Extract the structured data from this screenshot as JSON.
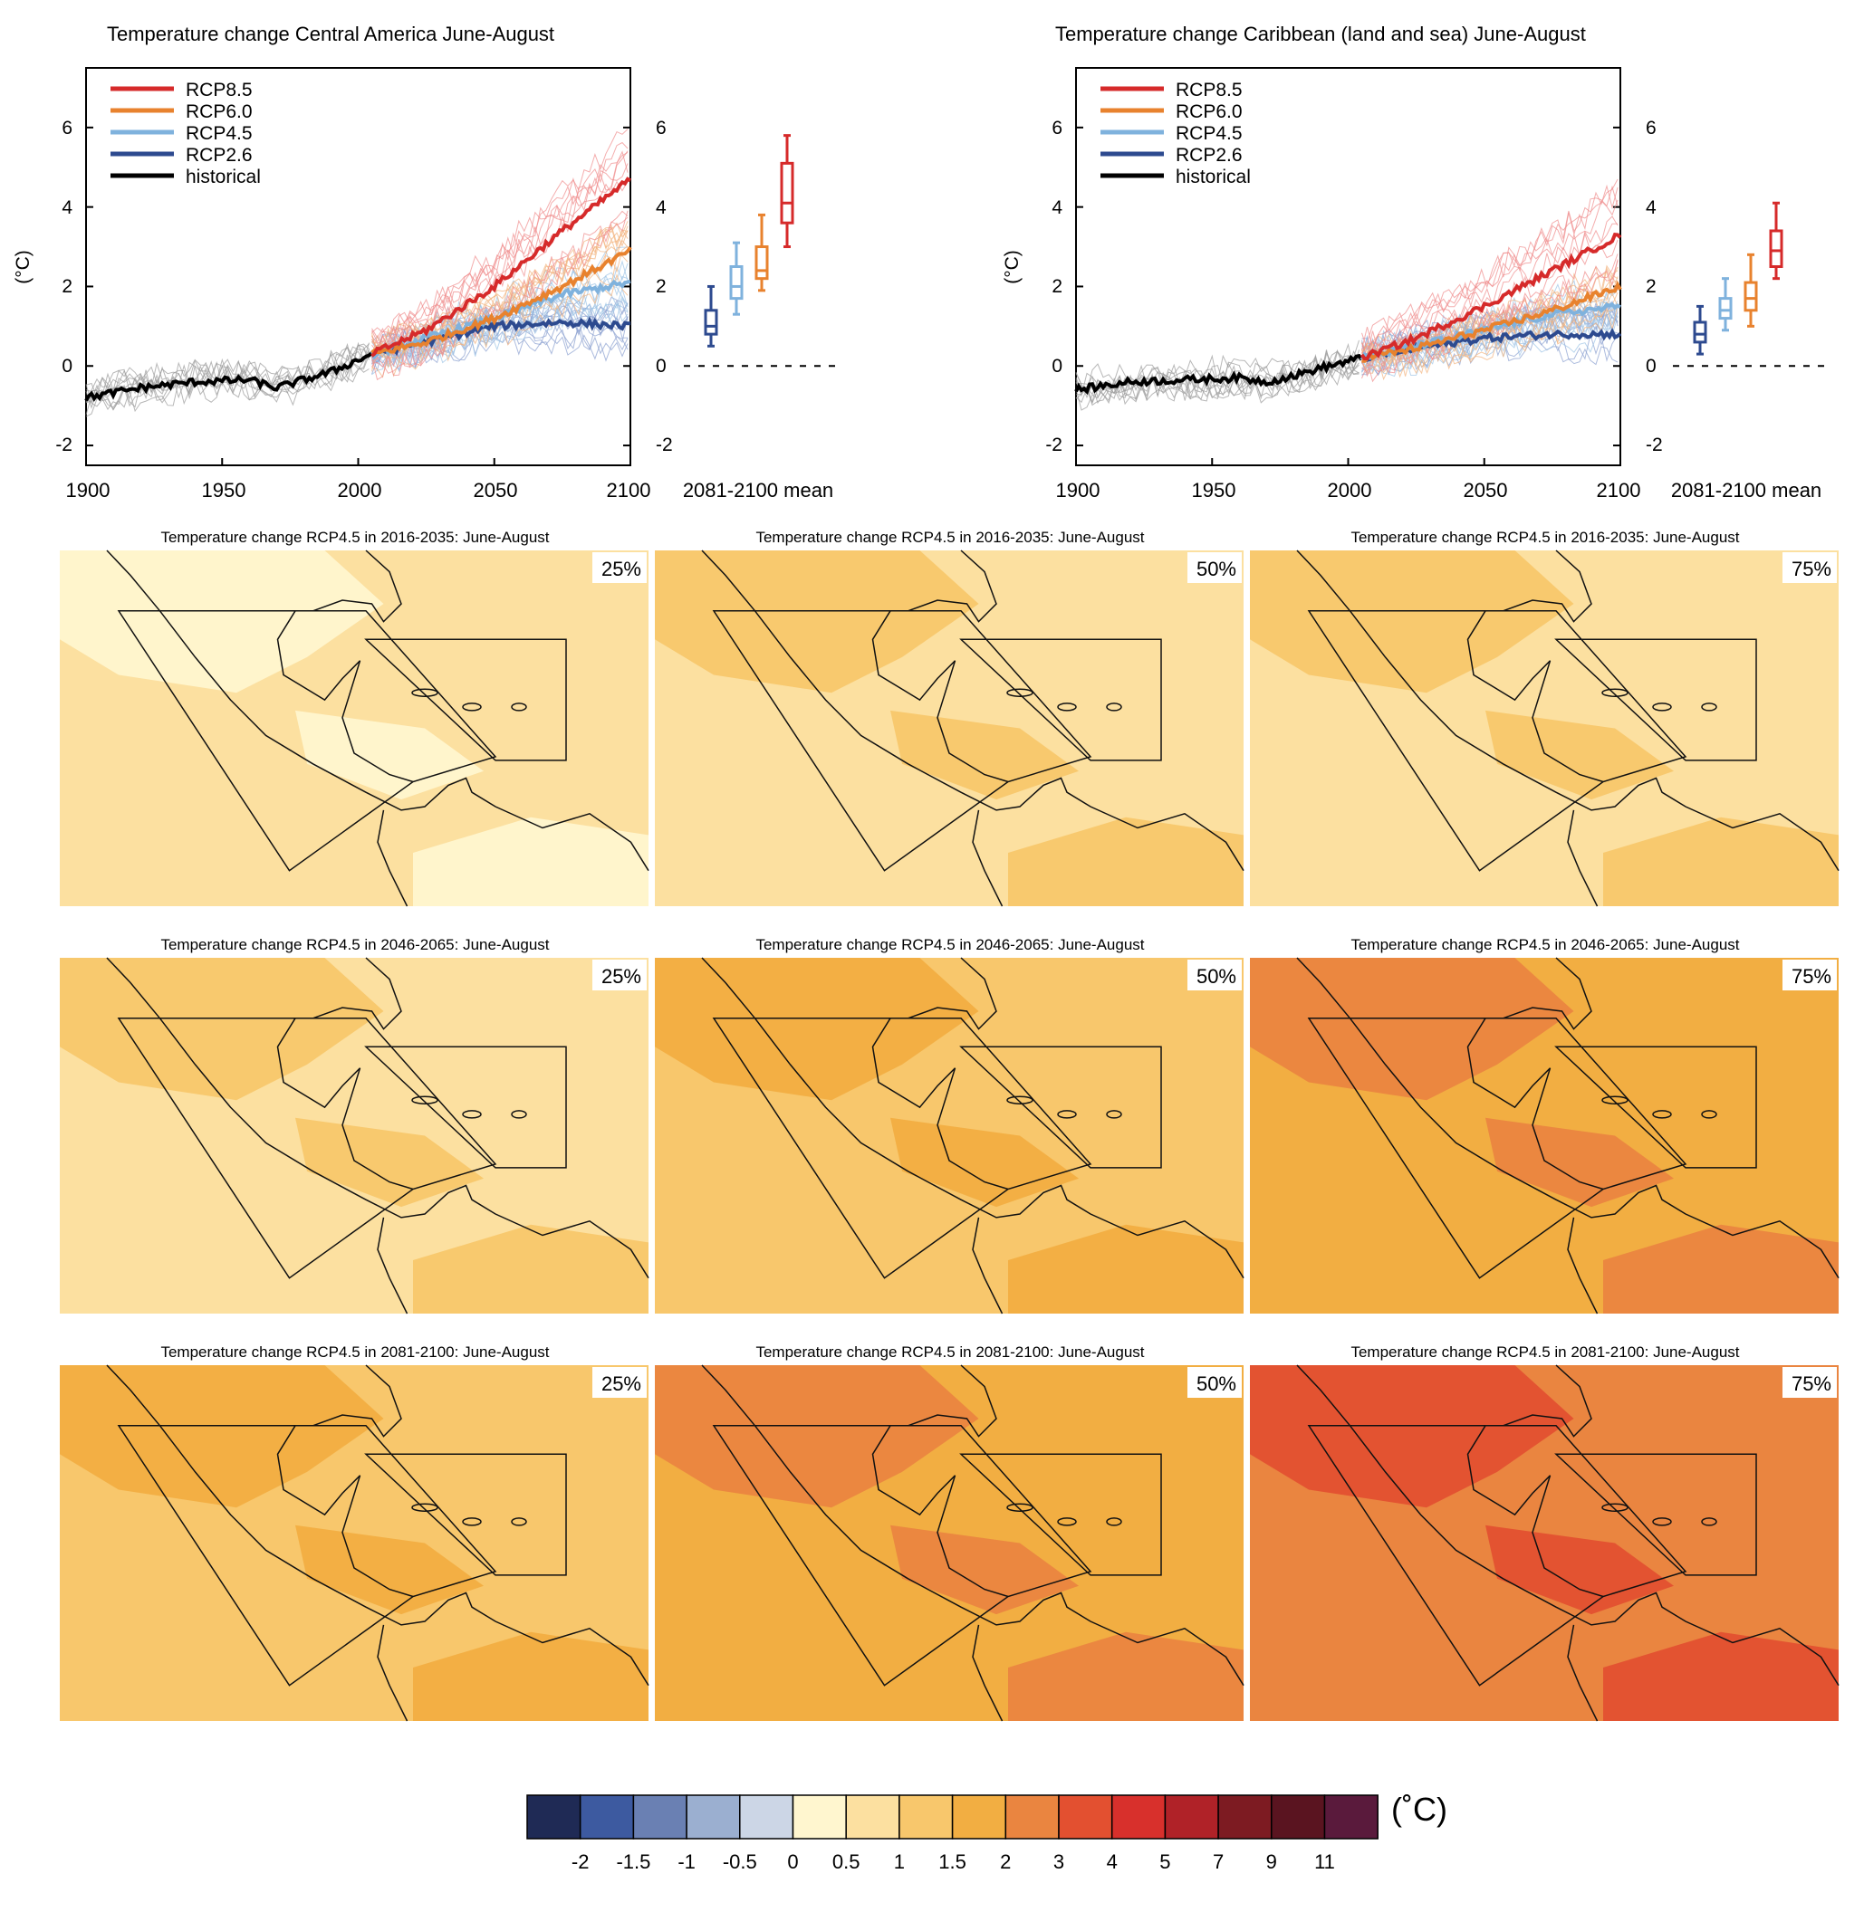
{
  "top_panels": [
    {
      "title": "Temperature change Central America June-August",
      "ylabel": "(°C)",
      "x_ticks": [
        "1900",
        "1950",
        "2000",
        "2050",
        "2100"
      ],
      "y_ticks": [
        "-2",
        "0",
        "2",
        "4",
        "6"
      ],
      "box_label": "2081-2100 mean"
    },
    {
      "title": "Temperature change Caribbean (land and sea) June-August",
      "ylabel": "(°C)",
      "x_ticks": [
        "1900",
        "1950",
        "2000",
        "2050",
        "2100"
      ],
      "y_ticks": [
        "-2",
        "0",
        "2",
        "4",
        "6"
      ],
      "box_label": "2081-2100 mean"
    }
  ],
  "legend": [
    {
      "label": "RCP8.5",
      "color": "#d62a2a"
    },
    {
      "label": "RCP6.0",
      "color": "#e8822e"
    },
    {
      "label": "RCP4.5",
      "color": "#7fb2dd"
    },
    {
      "label": "RCP2.6",
      "color": "#2d4a8f"
    },
    {
      "label": "historical",
      "color": "#000000"
    }
  ],
  "maps": [
    {
      "title": "Temperature change RCP4.5 in 2016-2035: June-August",
      "pct": "25%"
    },
    {
      "title": "Temperature change RCP4.5 in 2016-2035: June-August",
      "pct": "50%"
    },
    {
      "title": "Temperature change RCP4.5 in 2016-2035: June-August",
      "pct": "75%"
    },
    {
      "title": "Temperature change RCP4.5 in 2046-2065: June-August",
      "pct": "25%"
    },
    {
      "title": "Temperature change RCP4.5 in 2046-2065: June-August",
      "pct": "50%"
    },
    {
      "title": "Temperature change RCP4.5 in 2046-2065: June-August",
      "pct": "75%"
    },
    {
      "title": "Temperature change RCP4.5 in 2081-2100: June-August",
      "pct": "25%"
    },
    {
      "title": "Temperature change RCP4.5 in 2081-2100: June-August",
      "pct": "50%"
    },
    {
      "title": "Temperature change RCP4.5 in 2081-2100: June-August",
      "pct": "75%"
    }
  ],
  "colorbar": {
    "unit": "(˚C)",
    "labels": [
      "-2",
      "-1.5",
      "-1",
      "-0.5",
      "0",
      "0.5",
      "1",
      "1.5",
      "2",
      "3",
      "4",
      "5",
      "7",
      "9",
      "11"
    ],
    "colors": [
      "#1f2a55",
      "#3d5aa0",
      "#6a80b3",
      "#9bafd0",
      "#ccd6e6",
      "#fff6cf",
      "#fce0a0",
      "#f8c76c",
      "#f2ae42",
      "#ea8540",
      "#e35030",
      "#d8302c",
      "#b02228",
      "#7d1b22",
      "#5a1420",
      "#5a1a3c"
    ]
  },
  "chart_data": [
    {
      "type": "line",
      "title": "Temperature change Central America June-August",
      "ylabel": "(°C)",
      "xlim": [
        1900,
        2100
      ],
      "ylim": [
        -2.5,
        7.5
      ],
      "series": [
        {
          "name": "historical",
          "x": [
            1900,
            1920,
            1940,
            1960,
            1970,
            1980,
            1990,
            2005
          ],
          "y": [
            -0.8,
            -0.55,
            -0.4,
            -0.35,
            -0.55,
            -0.35,
            -0.15,
            0.3
          ]
        },
        {
          "name": "RCP2.6",
          "x": [
            2005,
            2025,
            2050,
            2075,
            2100
          ],
          "y": [
            0.3,
            0.6,
            1.0,
            1.1,
            1.0
          ]
        },
        {
          "name": "RCP4.5",
          "x": [
            2005,
            2025,
            2050,
            2075,
            2100
          ],
          "y": [
            0.3,
            0.7,
            1.2,
            1.8,
            2.1
          ]
        },
        {
          "name": "RCP6.0",
          "x": [
            2005,
            2025,
            2050,
            2075,
            2100
          ],
          "y": [
            0.3,
            0.6,
            1.2,
            2.0,
            2.9
          ]
        },
        {
          "name": "RCP8.5",
          "x": [
            2005,
            2025,
            2050,
            2075,
            2100
          ],
          "y": [
            0.3,
            0.9,
            2.0,
            3.4,
            4.7
          ]
        }
      ],
      "boxes_2081_2100": [
        {
          "name": "RCP2.6",
          "min": 0.5,
          "q1": 0.8,
          "median": 1.0,
          "q3": 1.4,
          "max": 2.0
        },
        {
          "name": "RCP4.5",
          "min": 1.3,
          "q1": 1.7,
          "median": 2.0,
          "q3": 2.5,
          "max": 3.1
        },
        {
          "name": "RCP6.0",
          "min": 1.9,
          "q1": 2.2,
          "median": 2.4,
          "q3": 3.0,
          "max": 3.8
        },
        {
          "name": "RCP8.5",
          "min": 3.0,
          "q1": 3.6,
          "median": 4.1,
          "q3": 5.1,
          "max": 5.8
        }
      ]
    },
    {
      "type": "line",
      "title": "Temperature change Caribbean (land and sea) June-August",
      "ylabel": "(°C)",
      "xlim": [
        1900,
        2100
      ],
      "ylim": [
        -2.5,
        7.5
      ],
      "series": [
        {
          "name": "historical",
          "x": [
            1900,
            1920,
            1940,
            1960,
            1970,
            1980,
            1990,
            2005
          ],
          "y": [
            -0.6,
            -0.4,
            -0.35,
            -0.3,
            -0.4,
            -0.25,
            -0.05,
            0.2
          ]
        },
        {
          "name": "RCP2.6",
          "x": [
            2005,
            2025,
            2050,
            2075,
            2100
          ],
          "y": [
            0.2,
            0.45,
            0.7,
            0.8,
            0.8
          ]
        },
        {
          "name": "RCP4.5",
          "x": [
            2005,
            2025,
            2050,
            2075,
            2100
          ],
          "y": [
            0.2,
            0.5,
            0.9,
            1.3,
            1.5
          ]
        },
        {
          "name": "RCP6.0",
          "x": [
            2005,
            2025,
            2050,
            2075,
            2100
          ],
          "y": [
            0.2,
            0.45,
            0.9,
            1.4,
            2.0
          ]
        },
        {
          "name": "RCP8.5",
          "x": [
            2005,
            2025,
            2050,
            2075,
            2100
          ],
          "y": [
            0.2,
            0.7,
            1.5,
            2.4,
            3.3
          ]
        }
      ],
      "boxes_2081_2100": [
        {
          "name": "RCP2.6",
          "min": 0.3,
          "q1": 0.6,
          "median": 0.8,
          "q3": 1.1,
          "max": 1.5
        },
        {
          "name": "RCP4.5",
          "min": 0.9,
          "q1": 1.2,
          "median": 1.4,
          "q3": 1.7,
          "max": 2.2
        },
        {
          "name": "RCP6.0",
          "min": 1.0,
          "q1": 1.4,
          "median": 1.7,
          "q3": 2.1,
          "max": 2.8
        },
        {
          "name": "RCP8.5",
          "min": 2.2,
          "q1": 2.5,
          "median": 2.9,
          "q3": 3.4,
          "max": 4.1
        }
      ]
    }
  ]
}
